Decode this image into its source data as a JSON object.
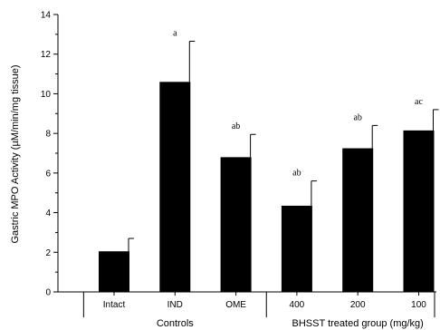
{
  "chart_data": {
    "type": "bar",
    "title": "",
    "ylabel": "Gastric MPO Activity (µM/min/mg tissue)",
    "xlabel": "",
    "ylim": [
      0,
      14
    ],
    "yticks": [
      0,
      2,
      4,
      6,
      8,
      10,
      12,
      14
    ],
    "categories": [
      "Intact",
      "IND",
      "OME",
      "400",
      "200",
      "100"
    ],
    "values": [
      2.05,
      10.6,
      6.8,
      4.35,
      7.25,
      8.15
    ],
    "errors": [
      0.65,
      2.05,
      1.15,
      1.25,
      1.15,
      1.05
    ],
    "significance": [
      "",
      "a",
      "ab",
      "ab",
      "ab",
      "ac"
    ],
    "groups": [
      {
        "label": "Controls",
        "categories": [
          "Intact",
          "IND",
          "OME"
        ]
      },
      {
        "label": "BHSST treated group (mg/kg)",
        "categories": [
          "400",
          "200",
          "100"
        ]
      }
    ],
    "colors": {
      "bar": "#000000",
      "axis": "#000000"
    },
    "grid": false,
    "legend": "none"
  }
}
